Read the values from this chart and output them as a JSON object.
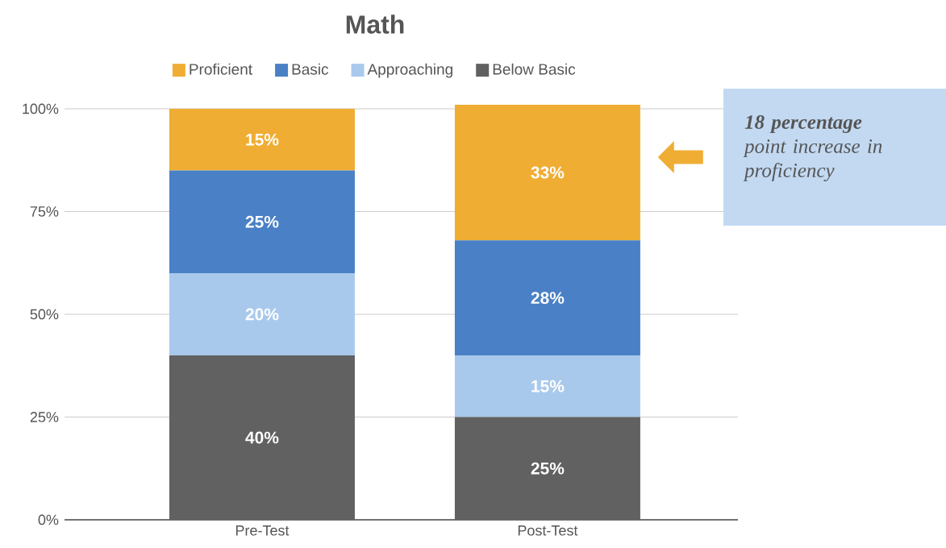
{
  "chart_data": {
    "type": "bar",
    "title": "Math",
    "stacked": true,
    "categories": [
      "Pre-Test",
      "Post-Test"
    ],
    "series": [
      {
        "name": "Below Basic",
        "color": "#616161",
        "values": [
          40,
          25
        ],
        "value_labels": [
          "40%",
          "25%"
        ]
      },
      {
        "name": "Approaching",
        "color": "#a9c9ec",
        "values": [
          20,
          15
        ],
        "value_labels": [
          "20%",
          "15%"
        ]
      },
      {
        "name": "Basic",
        "color": "#4a80c6",
        "values": [
          25,
          28
        ],
        "value_labels": [
          "25%",
          "28%"
        ]
      },
      {
        "name": "Proficient",
        "color": "#f0ad33",
        "values": [
          15,
          33
        ],
        "value_labels": [
          "15%",
          "33%"
        ]
      }
    ],
    "ylim": [
      0,
      101
    ],
    "yticks": [
      {
        "value": 0,
        "label": "0%"
      },
      {
        "value": 25,
        "label": "25%"
      },
      {
        "value": 50,
        "label": "50%"
      },
      {
        "value": 75,
        "label": "75%"
      },
      {
        "value": 100,
        "label": "100%"
      }
    ],
    "grid": "y",
    "legend": "top",
    "annotations": [
      "**18 percentage** point increase in proficiency"
    ]
  }
}
